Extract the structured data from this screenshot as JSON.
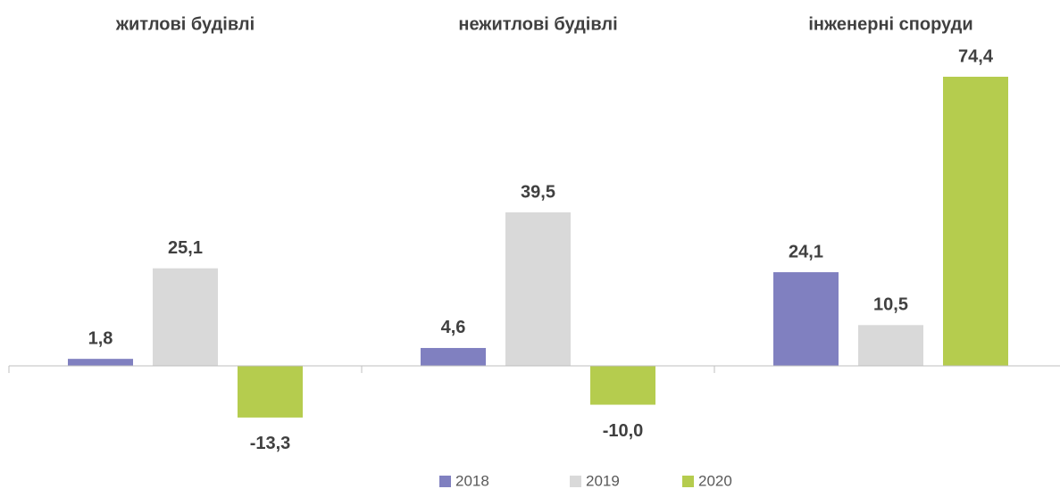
{
  "chart_data": {
    "type": "bar",
    "categories": [
      "житлові будівлі",
      "нежитлові будівлі",
      "інженерні споруди"
    ],
    "series": [
      {
        "name": "2018",
        "color": "#8080c0",
        "values": [
          1.8,
          4.6,
          24.1
        ],
        "value_labels": [
          "1,8",
          "4,6",
          "24,1"
        ]
      },
      {
        "name": "2019",
        "color": "#d9d9d9",
        "values": [
          25.1,
          39.5,
          10.5
        ],
        "value_labels": [
          "25,1",
          "39,5",
          "10,5"
        ]
      },
      {
        "name": "2020",
        "color": "#b5cc4e",
        "values": [
          -13.3,
          -10.0,
          74.4
        ],
        "value_labels": [
          "-13,3",
          "-10,0",
          "74,4"
        ]
      }
    ],
    "ylim": [
      -20,
      80
    ],
    "legend": "bottom"
  }
}
